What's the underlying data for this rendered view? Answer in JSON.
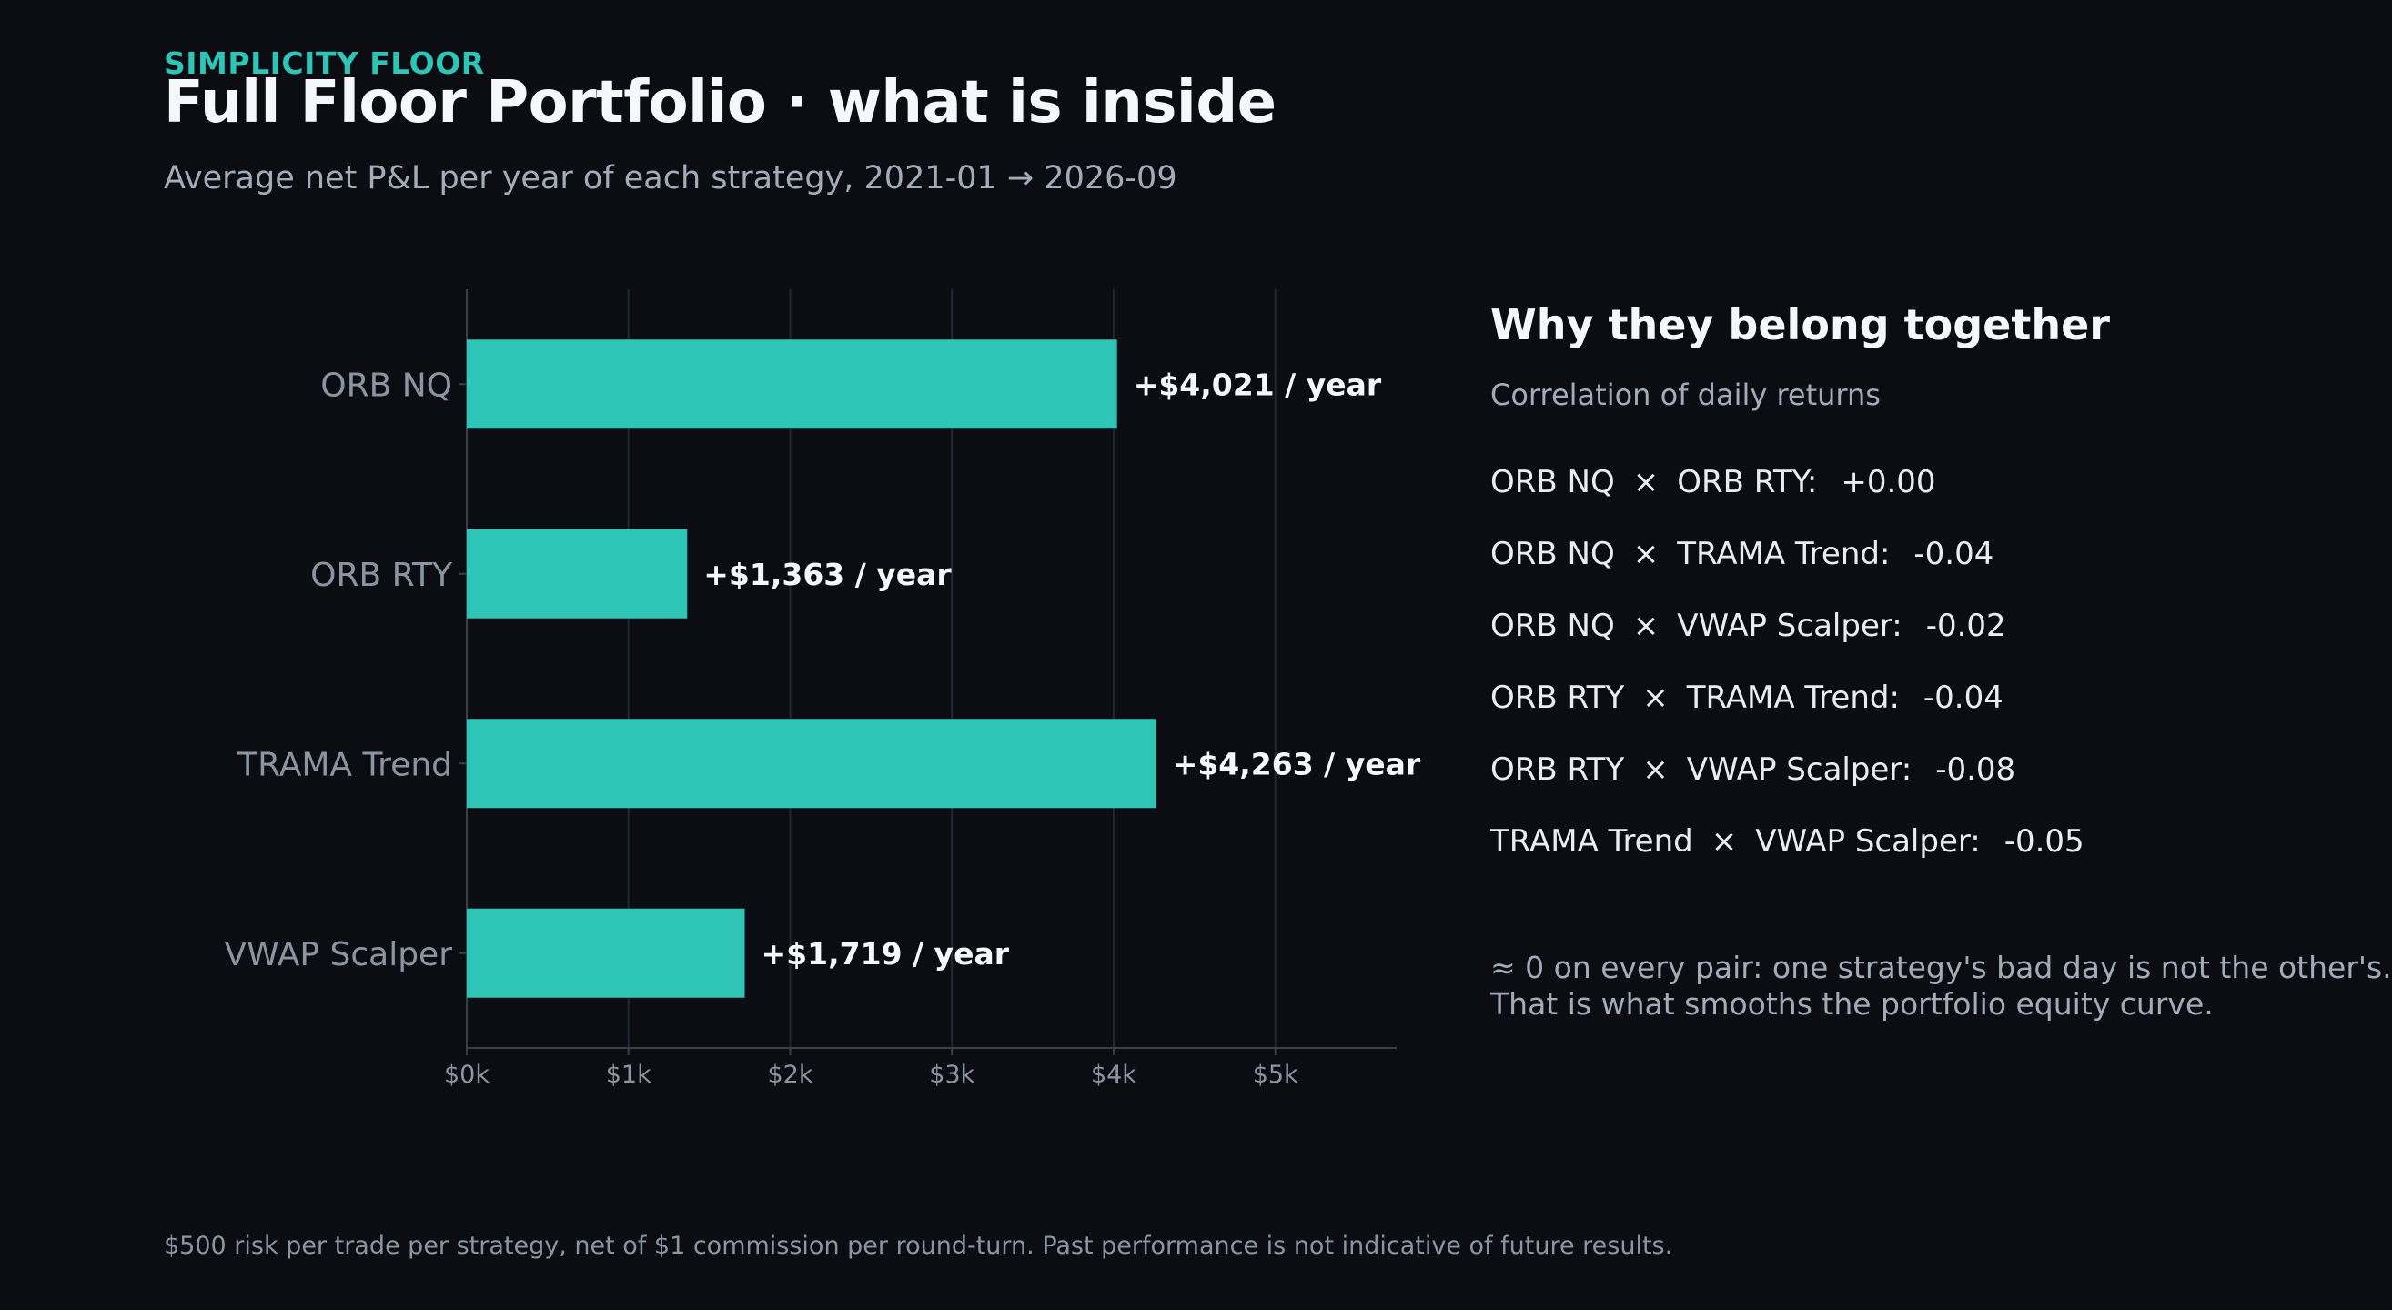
{
  "header": {
    "brand": "SIMPLICITY FLOOR",
    "title": "Full Floor Portfolio · what is inside",
    "subtitle": "Average net P&L per year of each strategy, 2021-01 → 2026-09"
  },
  "chart_data": {
    "type": "bar",
    "orientation": "horizontal",
    "categories": [
      "ORB NQ",
      "ORB RTY",
      "TRAMA Trend",
      "VWAP Scalper"
    ],
    "values": [
      4021,
      1363,
      4263,
      1719
    ],
    "data_labels": [
      "+$4,021 / year",
      "+$1,363 / year",
      "+$4,263 / year",
      "+$1,719 / year"
    ],
    "x_ticks": [
      0,
      1000,
      2000,
      3000,
      4000,
      5000
    ],
    "x_tick_labels": [
      "$0k",
      "$1k",
      "$2k",
      "$3k",
      "$4k",
      "$5k"
    ],
    "xlim": [
      0,
      5750
    ],
    "grid": "vertical",
    "bar_color": "#2ec4b6"
  },
  "panel": {
    "title": "Why they belong together",
    "subtitle": "Correlation of daily returns",
    "correlations": [
      {
        "a": "ORB NQ",
        "b": "ORB RTY:",
        "value": "+0.00"
      },
      {
        "a": "ORB NQ",
        "b": "TRAMA Trend:",
        "value": "-0.04"
      },
      {
        "a": "ORB NQ",
        "b": "VWAP Scalper:",
        "value": "-0.02"
      },
      {
        "a": "ORB RTY",
        "b": "TRAMA Trend:",
        "value": "-0.04"
      },
      {
        "a": "ORB RTY",
        "b": "VWAP Scalper:",
        "value": "-0.08"
      },
      {
        "a": "TRAMA Trend",
        "b": "VWAP Scalper:",
        "value": "-0.05"
      }
    ],
    "times_symbol": "×",
    "note_line1": "≈ 0 on every pair: one strategy's bad day is not the other's.",
    "note_line2": "That is what smooths the portfolio equity curve."
  },
  "footer": "$500 risk per trade per strategy, net of $1 commission per round-turn. Past performance is not indicative of future results."
}
